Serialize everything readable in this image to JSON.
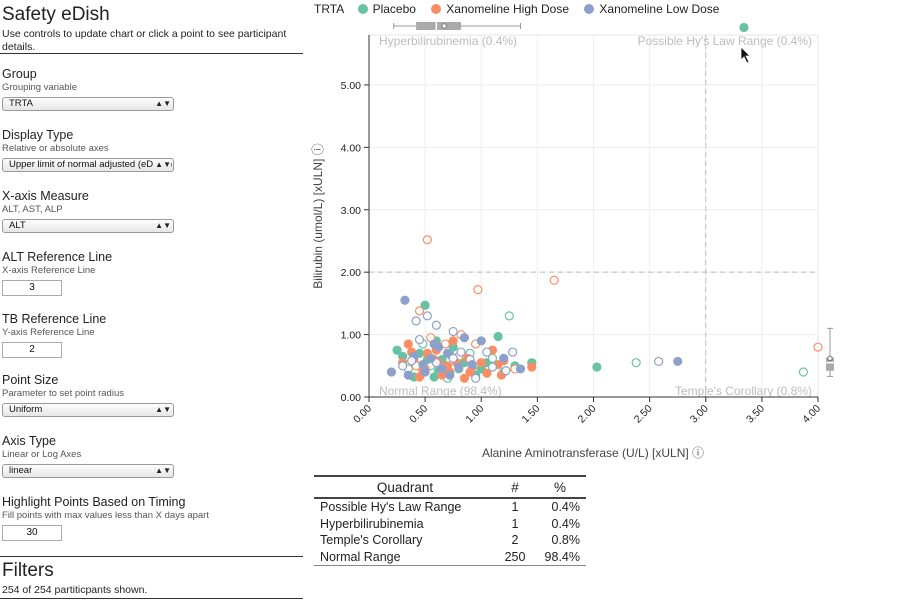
{
  "app": {
    "title": "Safety eDish",
    "instructions": "Use controls to update chart or click a point to see participant details."
  },
  "controls": [
    {
      "label": "Group",
      "description": "Grouping variable",
      "kind": "select",
      "value": "TRTA"
    },
    {
      "label": "Display Type",
      "description": "Relative or absolute axes",
      "kind": "select",
      "value": "Upper limit of normal adjusted (eDISH)"
    },
    {
      "label": "X-axis Measure",
      "description": "ALT, AST, ALP",
      "kind": "select",
      "value": "ALT"
    },
    {
      "label": "ALT Reference Line",
      "description": "X-axis Reference Line",
      "kind": "number",
      "value": "3"
    },
    {
      "label": "TB Reference Line",
      "description": "Y-axis Reference Line",
      "kind": "number",
      "value": "2"
    },
    {
      "label": "Point Size",
      "description": "Parameter to set point radius",
      "kind": "select",
      "value": "Uniform"
    },
    {
      "label": "Axis Type",
      "description": "Linear or Log Axes",
      "kind": "select",
      "value": "linear"
    },
    {
      "label": "Highlight Points Based on Timing",
      "description": "Fill points with max values less than X days apart",
      "kind": "number",
      "value": "30"
    }
  ],
  "filters": {
    "title": "Filters",
    "count_text": "254 of 254 partiticpants shown."
  },
  "legend": {
    "title": "TRTA",
    "items": [
      {
        "name": "Placebo",
        "color": "#66c2a5"
      },
      {
        "name": "Xanomeline High Dose",
        "color": "#fc8d62"
      },
      {
        "name": "Xanomeline Low Dose",
        "color": "#8da0cb"
      }
    ]
  },
  "chart_data": {
    "type": "scatter",
    "xlabel": "Alanine Aminotransferase (U/L) [xULN]",
    "ylabel": "Bilirubin (umol/L) [xULN]",
    "info_icon": "ⓘ",
    "xlim": [
      0,
      4.0
    ],
    "ylim": [
      0,
      5.8
    ],
    "x_ticks": [
      "0.00",
      "0.50",
      "1.00",
      "1.50",
      "2.00",
      "2.50",
      "3.00",
      "3.50",
      "4.00"
    ],
    "y_ticks": [
      "0.00",
      "1.00",
      "2.00",
      "3.00",
      "4.00",
      "5.00"
    ],
    "x_ref": 3,
    "y_ref": 2,
    "quadrant_labels": {
      "top_left": "Hyperbilirubinemia (0.4%)",
      "top_right": "Possible Hy's Law Range (0.4%)",
      "bottom_left": "Normal Range (98.4%)",
      "bottom_right": "Temple's Corollary (0.8%)"
    },
    "x_box": {
      "min": 0.22,
      "q1": 0.42,
      "median": 0.6,
      "q3": 0.82,
      "max": 1.35,
      "mean": 0.67
    },
    "y_box": {
      "min": 0.33,
      "q1": 0.42,
      "median": 0.55,
      "q3": 0.63,
      "max": 1.1,
      "mean": 0.62
    },
    "series": [
      {
        "name": "Placebo",
        "color": "#66c2a5",
        "points": [
          [
            3.34,
            5.92,
            1
          ],
          [
            0.5,
            1.47,
            1
          ],
          [
            1.25,
            1.3,
            0
          ],
          [
            1.15,
            0.97,
            1
          ],
          [
            2.03,
            0.48,
            1
          ],
          [
            2.38,
            0.55,
            0
          ],
          [
            3.87,
            0.4,
            0
          ],
          [
            1.45,
            0.55,
            1
          ],
          [
            0.3,
            0.65,
            1
          ],
          [
            0.45,
            0.7,
            1
          ],
          [
            0.55,
            0.5,
            0
          ],
          [
            0.65,
            0.6,
            1
          ],
          [
            0.8,
            0.45,
            1
          ],
          [
            0.9,
            0.7,
            0
          ],
          [
            1.05,
            0.55,
            1
          ],
          [
            1.2,
            0.4,
            1
          ],
          [
            0.35,
            0.45,
            0
          ],
          [
            0.6,
            0.9,
            1
          ],
          [
            0.75,
            0.8,
            1
          ],
          [
            0.95,
            0.35,
            1
          ],
          [
            1.1,
            0.62,
            0
          ],
          [
            0.4,
            0.32,
            1
          ],
          [
            0.52,
            0.6,
            1
          ],
          [
            0.7,
            0.3,
            0
          ],
          [
            0.85,
            0.55,
            1
          ],
          [
            1.3,
            0.5,
            1
          ],
          [
            0.25,
            0.75,
            1
          ],
          [
            0.62,
            0.42,
            1
          ],
          [
            0.48,
            0.85,
            0
          ],
          [
            1.0,
            0.45,
            1
          ],
          [
            0.72,
            0.68,
            1
          ],
          [
            0.58,
            0.32,
            1
          ]
        ]
      },
      {
        "name": "Xanomeline High Dose",
        "color": "#fc8d62",
        "points": [
          [
            0.52,
            2.52,
            0
          ],
          [
            0.97,
            1.72,
            0
          ],
          [
            1.65,
            1.87,
            0
          ],
          [
            4.0,
            0.8,
            0
          ],
          [
            0.45,
            1.38,
            0
          ],
          [
            0.82,
            1.0,
            0
          ],
          [
            1.18,
            0.35,
            1
          ],
          [
            1.45,
            0.48,
            1
          ],
          [
            0.3,
            0.55,
            1
          ],
          [
            0.4,
            0.6,
            1
          ],
          [
            0.5,
            0.45,
            1
          ],
          [
            0.6,
            0.75,
            1
          ],
          [
            0.7,
            0.5,
            1
          ],
          [
            0.8,
            0.65,
            0
          ],
          [
            0.9,
            0.4,
            1
          ],
          [
            1.0,
            0.55,
            1
          ],
          [
            1.1,
            0.75,
            1
          ],
          [
            1.2,
            0.58,
            1
          ],
          [
            0.35,
            0.85,
            1
          ],
          [
            0.45,
            0.32,
            1
          ],
          [
            0.55,
            0.95,
            0
          ],
          [
            0.65,
            0.35,
            1
          ],
          [
            0.75,
            0.9,
            1
          ],
          [
            0.85,
            0.3,
            1
          ],
          [
            0.95,
            0.85,
            0
          ],
          [
            1.05,
            0.38,
            1
          ],
          [
            0.58,
            0.6,
            1
          ],
          [
            0.68,
            0.45,
            1
          ],
          [
            0.78,
            0.55,
            1
          ],
          [
            0.88,
            0.62,
            1
          ],
          [
            0.42,
            0.5,
            0
          ],
          [
            0.52,
            0.7,
            1
          ],
          [
            0.62,
            0.55,
            1
          ],
          [
            0.72,
            0.4,
            1
          ],
          [
            0.48,
            0.42,
            1
          ],
          [
            1.3,
            0.45,
            0
          ],
          [
            1.15,
            0.52,
            1
          ],
          [
            0.38,
            0.72,
            1
          ],
          [
            0.92,
            0.48,
            1
          ],
          [
            0.68,
            0.85,
            0
          ]
        ]
      },
      {
        "name": "Xanomeline Low Dose",
        "color": "#8da0cb",
        "points": [
          [
            0.32,
            1.55,
            1
          ],
          [
            2.75,
            0.57,
            1
          ],
          [
            2.58,
            0.57,
            0
          ],
          [
            0.42,
            1.22,
            0
          ],
          [
            0.52,
            1.3,
            0
          ],
          [
            0.6,
            1.15,
            0
          ],
          [
            0.75,
            1.05,
            0
          ],
          [
            1.22,
            0.42,
            0
          ],
          [
            0.2,
            0.4,
            1
          ],
          [
            0.3,
            0.5,
            0
          ],
          [
            0.4,
            0.65,
            1
          ],
          [
            0.5,
            0.4,
            1
          ],
          [
            0.6,
            0.55,
            0
          ],
          [
            0.7,
            0.7,
            1
          ],
          [
            0.8,
            0.48,
            1
          ],
          [
            0.9,
            0.6,
            0
          ],
          [
            1.0,
            0.9,
            1
          ],
          [
            1.1,
            0.48,
            0
          ],
          [
            1.2,
            0.62,
            1
          ],
          [
            0.35,
            0.35,
            1
          ],
          [
            0.45,
            0.92,
            0
          ],
          [
            0.55,
            0.62,
            1
          ],
          [
            0.65,
            0.45,
            1
          ],
          [
            0.75,
            0.62,
            0
          ],
          [
            0.85,
            0.95,
            1
          ],
          [
            0.95,
            0.3,
            0
          ],
          [
            1.05,
            0.72,
            0
          ],
          [
            1.35,
            0.45,
            1
          ],
          [
            0.62,
            0.8,
            1
          ],
          [
            0.72,
            0.35,
            1
          ],
          [
            0.82,
            0.72,
            0
          ],
          [
            0.92,
            0.52,
            1
          ],
          [
            0.38,
            0.58,
            0
          ],
          [
            0.48,
            0.52,
            1
          ],
          [
            1.28,
            0.72,
            0
          ],
          [
            0.58,
            0.85,
            1
          ]
        ]
      }
    ]
  },
  "quadrant_table": {
    "headers": [
      "Quadrant",
      "#",
      "%"
    ],
    "rows": [
      [
        "Possible Hy's Law Range",
        "1",
        "0.4%"
      ],
      [
        "Hyperbilirubinemia",
        "1",
        "0.4%"
      ],
      [
        "Temple's Corollary",
        "2",
        "0.8%"
      ],
      [
        "Normal Range",
        "250",
        "98.4%"
      ]
    ]
  }
}
